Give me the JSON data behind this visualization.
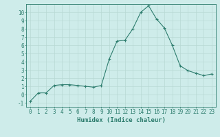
{
  "x": [
    0,
    1,
    2,
    3,
    4,
    5,
    6,
    7,
    8,
    9,
    10,
    11,
    12,
    13,
    14,
    15,
    16,
    17,
    18,
    19,
    20,
    21,
    22,
    23
  ],
  "y": [
    -0.8,
    0.2,
    0.2,
    1.1,
    1.2,
    1.2,
    1.1,
    1.0,
    0.9,
    1.1,
    4.3,
    6.5,
    6.6,
    8.0,
    10.0,
    10.8,
    9.2,
    8.1,
    6.0,
    3.5,
    2.9,
    2.6,
    2.3,
    2.5
  ],
  "line_color": "#2e7d6e",
  "marker": "+",
  "marker_size": 3,
  "xlabel": "Humidex (Indice chaleur)",
  "xlim": [
    -0.5,
    23.5
  ],
  "ylim": [
    -1.5,
    11.0
  ],
  "yticks": [
    -1,
    0,
    1,
    2,
    3,
    4,
    5,
    6,
    7,
    8,
    9,
    10
  ],
  "xticks": [
    0,
    1,
    2,
    3,
    4,
    5,
    6,
    7,
    8,
    9,
    10,
    11,
    12,
    13,
    14,
    15,
    16,
    17,
    18,
    19,
    20,
    21,
    22,
    23
  ],
  "background_color": "#ceecea",
  "grid_color": "#b8d8d4",
  "line_width": 0.8,
  "tick_color": "#2e7d6e",
  "label_color": "#2e7d6e",
  "tick_fontsize": 5.5,
  "xlabel_fontsize": 6.5
}
